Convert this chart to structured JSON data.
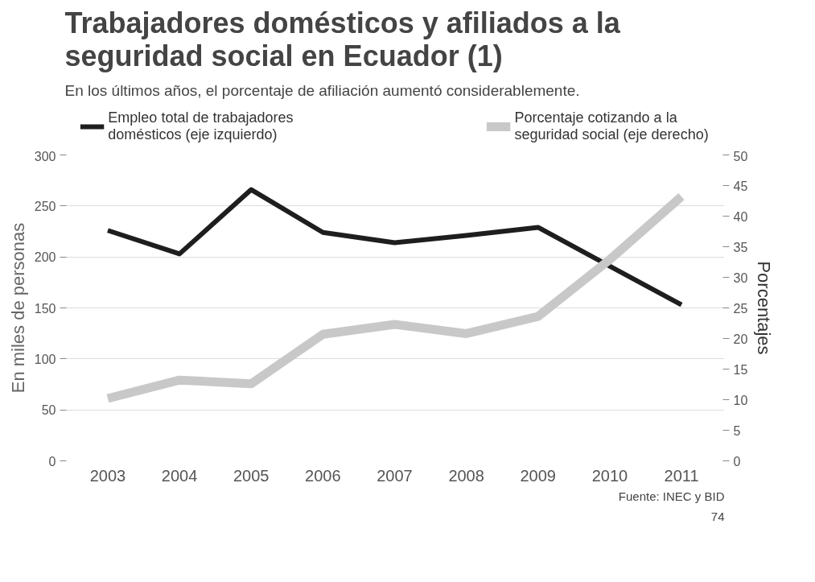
{
  "chart_data": {
    "type": "line",
    "title": "Trabajadores domésticos y afiliados a la seguridad social en Ecuador (1)",
    "subtitle": "En los últimos años, el porcentaje de afiliación aumentó considerablemente.",
    "ylabel": "En miles de personas",
    "y2label": "Porcentajes",
    "categories": [
      "2003",
      "2004",
      "2005",
      "2006",
      "2007",
      "2008",
      "2009",
      "2010",
      "2011"
    ],
    "series": [
      {
        "name": "Empleo total de trabajadores domésticos (eje izquierdo)",
        "color": "#1e1e1e",
        "values": [
          226,
          203,
          266,
          224,
          214,
          221,
          229,
          191,
          153
        ]
      },
      {
        "name": "Porcentaje cotizando a la seguridad social (eje derecho)",
        "color": "#c8c8c8",
        "axis": "y2",
        "values": [
          10.2,
          13.2,
          12.6,
          20.7,
          22.3,
          20.8,
          23.6,
          32.9,
          43.2
        ]
      }
    ],
    "ylim": [
      0,
      300
    ],
    "yticks": [
      0,
      50,
      100,
      150,
      200,
      250,
      300
    ],
    "y2lim": [
      0,
      50
    ],
    "y2ticks": [
      0,
      5,
      10,
      15,
      20,
      25,
      30,
      35,
      40,
      45,
      50
    ],
    "grid": "y",
    "legend": "top",
    "marker": "none",
    "line_style": "solid",
    "annotations": [
      "Fuente: INEC y BID",
      "74"
    ]
  }
}
